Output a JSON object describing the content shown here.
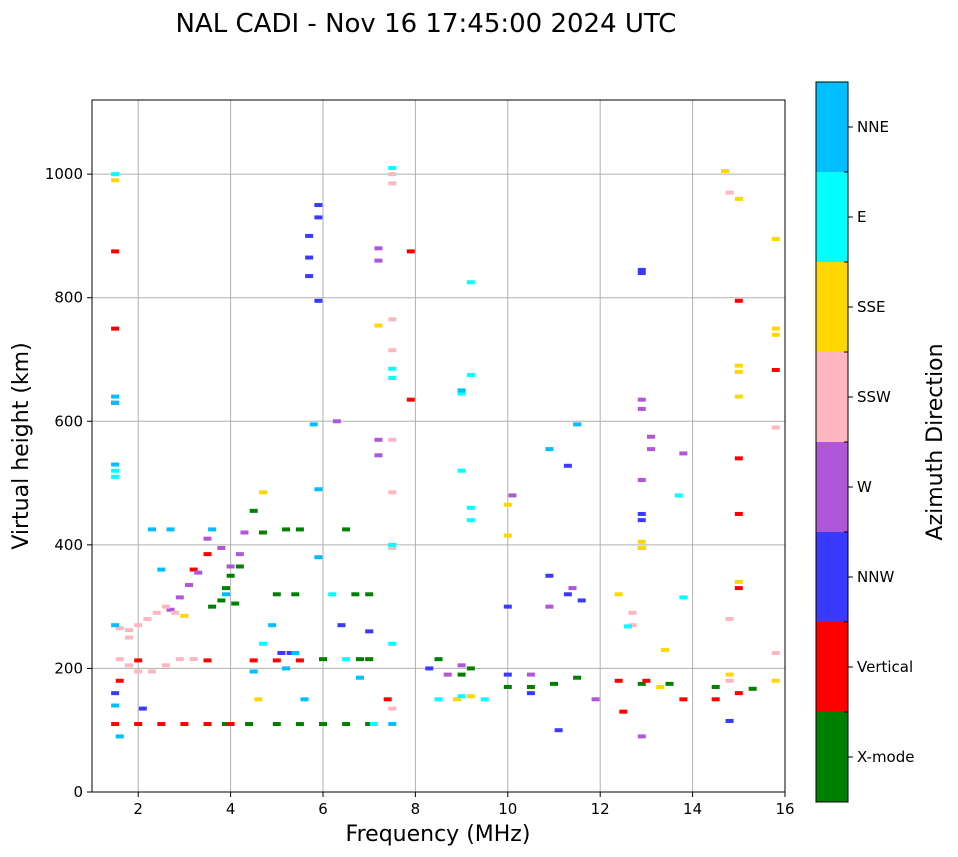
{
  "chart_data": {
    "type": "scatter",
    "title": "NAL CADI - Nov 16 17:45:00 2024 UTC",
    "xlabel": "Frequency (MHz)",
    "ylabel": "Virtual height (km)",
    "xlim": [
      1,
      16
    ],
    "ylim": [
      0,
      1120
    ],
    "xticks": [
      2,
      4,
      6,
      8,
      10,
      12,
      14,
      16
    ],
    "yticks": [
      0,
      200,
      400,
      600,
      800,
      1000
    ],
    "grid": true,
    "colorbar": {
      "title": "Azimuth Direction",
      "categories": [
        {
          "name": "X-mode",
          "color": "#008000"
        },
        {
          "name": "Vertical",
          "color": "#ff0000"
        },
        {
          "name": "NNW",
          "color": "#3a3aff"
        },
        {
          "name": "W",
          "color": "#b056d8"
        },
        {
          "name": "SSW",
          "color": "#ffb6c1"
        },
        {
          "name": "SSE",
          "color": "#ffd700"
        },
        {
          "name": "E",
          "color": "#00ffff"
        },
        {
          "name": "NNE",
          "color": "#00bfff"
        }
      ]
    },
    "series": [
      {
        "name": "X-mode",
        "points": [
          [
            3.9,
            110
          ],
          [
            4.4,
            110
          ],
          [
            5,
            110
          ],
          [
            5.5,
            110
          ],
          [
            6,
            110
          ],
          [
            6.5,
            110
          ],
          [
            7,
            110
          ],
          [
            3.9,
            330
          ],
          [
            4,
            350
          ],
          [
            4.2,
            365
          ],
          [
            3.8,
            310
          ],
          [
            5,
            320
          ],
          [
            5.4,
            320
          ],
          [
            6.7,
            320
          ],
          [
            7,
            320
          ],
          [
            6,
            215
          ],
          [
            6.8,
            215
          ],
          [
            7,
            215
          ],
          [
            8.5,
            215
          ],
          [
            9,
            190
          ],
          [
            9.2,
            200
          ],
          [
            10,
            170
          ],
          [
            10.5,
            170
          ],
          [
            11,
            175
          ],
          [
            11.5,
            185
          ],
          [
            12.9,
            175
          ],
          [
            13.5,
            175
          ],
          [
            14.5,
            170
          ],
          [
            15.3,
            167
          ],
          [
            5.2,
            425
          ],
          [
            5.5,
            425
          ],
          [
            6.5,
            425
          ],
          [
            4.7,
            420
          ],
          [
            4.5,
            455
          ],
          [
            3.6,
            300
          ],
          [
            4.1,
            305
          ]
        ]
      },
      {
        "name": "Vertical",
        "points": [
          [
            1.5,
            110
          ],
          [
            2,
            110
          ],
          [
            2.5,
            110
          ],
          [
            3,
            110
          ],
          [
            3.5,
            110
          ],
          [
            4,
            110
          ],
          [
            4.5,
            213
          ],
          [
            5,
            213
          ],
          [
            5.5,
            213
          ],
          [
            3.5,
            213
          ],
          [
            2,
            213
          ],
          [
            1.6,
            180
          ],
          [
            1.5,
            875
          ],
          [
            1.5,
            750
          ],
          [
            1.5,
            630
          ],
          [
            3.2,
            360
          ],
          [
            3.5,
            385
          ],
          [
            7.9,
            875
          ],
          [
            7.9,
            635
          ],
          [
            7.4,
            150
          ],
          [
            12.4,
            180
          ],
          [
            12.5,
            130
          ],
          [
            13,
            180
          ],
          [
            13.8,
            150
          ],
          [
            14.5,
            150
          ],
          [
            15,
            160
          ],
          [
            15,
            330
          ],
          [
            15,
            450
          ],
          [
            15,
            540
          ],
          [
            15,
            795
          ],
          [
            15.8,
            683
          ]
        ]
      },
      {
        "name": "NNW",
        "points": [
          [
            5.9,
            950
          ],
          [
            5.9,
            930
          ],
          [
            5.7,
            900
          ],
          [
            5.7,
            865
          ],
          [
            5.7,
            835
          ],
          [
            5.9,
            795
          ],
          [
            12.9,
            845
          ],
          [
            12.9,
            840
          ],
          [
            12.9,
            450
          ],
          [
            12.9,
            440
          ],
          [
            10,
            300
          ],
          [
            10.9,
            350
          ],
          [
            11.3,
            320
          ],
          [
            11.6,
            310
          ],
          [
            11.1,
            100
          ],
          [
            6.4,
            270
          ],
          [
            7,
            260
          ],
          [
            1.5,
            160
          ],
          [
            2.1,
            135
          ],
          [
            5.1,
            225
          ],
          [
            5.3,
            225
          ],
          [
            8.3,
            200
          ],
          [
            11.3,
            528
          ],
          [
            14.8,
            115
          ],
          [
            10,
            190
          ],
          [
            10.5,
            160
          ]
        ]
      },
      {
        "name": "W",
        "points": [
          [
            2.7,
            295
          ],
          [
            2.9,
            315
          ],
          [
            3.1,
            335
          ],
          [
            3.3,
            355
          ],
          [
            3.5,
            410
          ],
          [
            3.8,
            395
          ],
          [
            4.3,
            420
          ],
          [
            4.2,
            385
          ],
          [
            4,
            365
          ],
          [
            7.2,
            880
          ],
          [
            7.2,
            860
          ],
          [
            7.2,
            570
          ],
          [
            7.2,
            545
          ],
          [
            12.9,
            635
          ],
          [
            12.9,
            620
          ],
          [
            12.9,
            505
          ],
          [
            12.9,
            395
          ],
          [
            13.1,
            575
          ],
          [
            13.1,
            555
          ],
          [
            13.8,
            548
          ],
          [
            10.1,
            480
          ],
          [
            10.9,
            300
          ],
          [
            11.4,
            330
          ],
          [
            11.9,
            150
          ],
          [
            12.9,
            90
          ],
          [
            8.7,
            190
          ],
          [
            9,
            205
          ],
          [
            10.5,
            190
          ],
          [
            6.3,
            600
          ]
        ]
      },
      {
        "name": "SSW",
        "points": [
          [
            1.6,
            265
          ],
          [
            1.8,
            262
          ],
          [
            2,
            270
          ],
          [
            2.2,
            280
          ],
          [
            2.4,
            290
          ],
          [
            2.6,
            300
          ],
          [
            2.8,
            290
          ],
          [
            1.6,
            215
          ],
          [
            1.8,
            205
          ],
          [
            2,
            195
          ],
          [
            2.3,
            195
          ],
          [
            2.6,
            205
          ],
          [
            2.9,
            215
          ],
          [
            3.2,
            215
          ],
          [
            1.8,
            250
          ],
          [
            7.5,
            1000
          ],
          [
            7.5,
            985
          ],
          [
            7.5,
            765
          ],
          [
            7.5,
            715
          ],
          [
            7.5,
            570
          ],
          [
            7.5,
            485
          ],
          [
            7.5,
            395
          ],
          [
            7.5,
            135
          ],
          [
            14.8,
            970
          ],
          [
            14.8,
            280
          ],
          [
            14.8,
            180
          ],
          [
            15.8,
            590
          ],
          [
            15.8,
            225
          ],
          [
            12.7,
            290
          ],
          [
            12.7,
            270
          ]
        ]
      },
      {
        "name": "SSE",
        "points": [
          [
            1.5,
            990
          ],
          [
            14.7,
            1005
          ],
          [
            15,
            960
          ],
          [
            15.8,
            895
          ],
          [
            15.8,
            750
          ],
          [
            15.8,
            740
          ],
          [
            15,
            690
          ],
          [
            15,
            680
          ],
          [
            15,
            640
          ],
          [
            15,
            340
          ],
          [
            14.8,
            190
          ],
          [
            15.8,
            180
          ],
          [
            13.4,
            230
          ],
          [
            12.4,
            320
          ],
          [
            12.9,
            405
          ],
          [
            12.9,
            395
          ],
          [
            10,
            465
          ],
          [
            10,
            415
          ],
          [
            7.2,
            755
          ],
          [
            4.7,
            485
          ],
          [
            4.6,
            150
          ],
          [
            3,
            285
          ],
          [
            8.9,
            150
          ],
          [
            9.2,
            155
          ],
          [
            13.3,
            170
          ]
        ]
      },
      {
        "name": "E",
        "points": [
          [
            1.5,
            1000
          ],
          [
            7.5,
            1010
          ],
          [
            1.5,
            520
          ],
          [
            1.5,
            510
          ],
          [
            9.2,
            825
          ],
          [
            9.2,
            675
          ],
          [
            9,
            645
          ],
          [
            9,
            520
          ],
          [
            9.2,
            460
          ],
          [
            9.2,
            440
          ],
          [
            13.7,
            480
          ],
          [
            13.8,
            315
          ],
          [
            12.6,
            268
          ],
          [
            7.5,
            685
          ],
          [
            7.5,
            670
          ],
          [
            7.5,
            400
          ],
          [
            7.5,
            240
          ],
          [
            7.1,
            110
          ],
          [
            6.5,
            215
          ],
          [
            6.2,
            320
          ],
          [
            4.7,
            240
          ],
          [
            8.5,
            150
          ],
          [
            9,
            155
          ],
          [
            9.5,
            150
          ]
        ]
      },
      {
        "name": "NNE",
        "points": [
          [
            1.5,
            640
          ],
          [
            1.5,
            630
          ],
          [
            1.5,
            530
          ],
          [
            1.5,
            270
          ],
          [
            1.5,
            140
          ],
          [
            1.6,
            90
          ],
          [
            2.3,
            425
          ],
          [
            2.7,
            425
          ],
          [
            3.6,
            425
          ],
          [
            2.5,
            360
          ],
          [
            3.9,
            320
          ],
          [
            4.9,
            270
          ],
          [
            5.4,
            225
          ],
          [
            5.8,
            595
          ],
          [
            5.9,
            490
          ],
          [
            5.9,
            380
          ],
          [
            5.6,
            150
          ],
          [
            6.8,
            185
          ],
          [
            7.5,
            110
          ],
          [
            9,
            650
          ],
          [
            10.9,
            555
          ],
          [
            11.5,
            595
          ],
          [
            4.5,
            195
          ],
          [
            5.2,
            200
          ]
        ]
      }
    ]
  }
}
